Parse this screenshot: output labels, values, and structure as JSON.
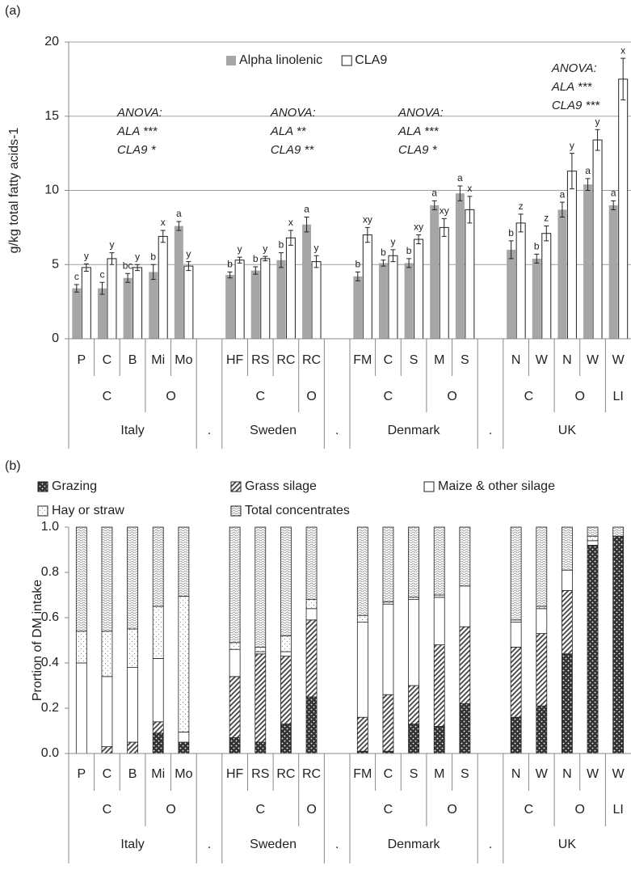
{
  "chart_data": [
    {
      "type": "bar",
      "panel": "(a)",
      "y_label": "g/kg total fatty acids-1",
      "ylim": [
        0,
        20
      ],
      "yticks": [
        0,
        5,
        10,
        15,
        20
      ],
      "grid": true,
      "legend": "top",
      "countries": [
        {
          "name": "Italy",
          "groups": [
            {
              "name": "C",
              "categories": [
                "P",
                "C",
                "B"
              ]
            },
            {
              "name": "O",
              "categories": [
                "Mi",
                "Mo"
              ]
            }
          ],
          "anova": [
            "ANOVA:",
            "ALA ***",
            "CLA9 *"
          ]
        },
        {
          "name": "."
        },
        {
          "name": "Sweden",
          "groups": [
            {
              "name": "C",
              "categories": [
                "HF",
                "RS",
                "RC"
              ]
            },
            {
              "name": "O",
              "categories": [
                "RC"
              ]
            }
          ],
          "anova": [
            "ANOVA:",
            "ALA **",
            "CLA9 **"
          ]
        },
        {
          "name": "."
        },
        {
          "name": "Denmark",
          "groups": [
            {
              "name": "C",
              "categories": [
                "FM",
                "C",
                "S"
              ]
            },
            {
              "name": "O",
              "categories": [
                "M",
                "S"
              ]
            }
          ],
          "anova": [
            "ANOVA:",
            "ALA ***",
            "CLA9 *"
          ]
        },
        {
          "name": "."
        },
        {
          "name": "UK",
          "groups": [
            {
              "name": "C",
              "categories": [
                "N",
                "W"
              ]
            },
            {
              "name": "O",
              "categories": [
                "N",
                "W"
              ]
            },
            {
              "name": "LI",
              "categories": [
                "W"
              ]
            }
          ],
          "anova": [
            "ANOVA:",
            "ALA ***",
            "CLA9 ***"
          ]
        }
      ],
      "series": [
        {
          "name": "Alpha linolenic",
          "color": "#a6a6a6",
          "values": [
            3.4,
            3.4,
            4.1,
            4.5,
            7.6,
            null,
            4.3,
            4.6,
            5.3,
            7.7,
            null,
            4.2,
            5.1,
            5.1,
            9.0,
            9.8,
            null,
            6.0,
            5.4,
            8.7,
            10.4,
            9.0
          ],
          "errors": [
            0.25,
            0.4,
            0.3,
            0.5,
            0.3,
            null,
            0.2,
            0.25,
            0.5,
            0.5,
            null,
            0.3,
            0.2,
            0.3,
            0.3,
            0.5,
            null,
            0.6,
            0.3,
            0.5,
            0.4,
            0.3
          ],
          "letters": [
            "c",
            "c",
            "bc",
            "b",
            "a",
            null,
            "b",
            "b",
            "b",
            "a",
            null,
            "b",
            "b",
            "b",
            "a",
            "a",
            null,
            "b",
            "b",
            "a",
            "a",
            "a"
          ]
        },
        {
          "name": "CLA9",
          "color": "#ffffff",
          "values": [
            4.8,
            5.4,
            4.8,
            6.9,
            4.9,
            null,
            5.3,
            5.4,
            6.8,
            5.2,
            null,
            7.0,
            5.6,
            6.7,
            7.5,
            8.7,
            null,
            7.8,
            7.1,
            11.3,
            13.4,
            17.5
          ],
          "errors": [
            0.25,
            0.4,
            0.2,
            0.4,
            0.3,
            null,
            0.2,
            0.15,
            0.5,
            0.4,
            null,
            0.5,
            0.4,
            0.3,
            0.6,
            0.9,
            null,
            0.6,
            0.5,
            1.2,
            0.7,
            1.4
          ],
          "letters": [
            "y",
            "y",
            "y",
            "x",
            "y",
            null,
            "y",
            "y",
            "x",
            "y",
            null,
            "xy",
            "y",
            "xy",
            "xy",
            "x",
            null,
            "z",
            "z",
            "y",
            "y",
            "x"
          ]
        }
      ]
    },
    {
      "type": "stacked_bar",
      "panel": "(b)",
      "y_label": "Prortion of DM intake",
      "ylim": [
        0,
        1
      ],
      "yticks": [
        {
          "value": 0,
          "label": "0.0"
        },
        {
          "value": 0.2,
          "label": "0.2"
        },
        {
          "value": 0.4,
          "label": "0.4"
        },
        {
          "value": 0.6,
          "label": "0.6"
        },
        {
          "value": 0.8,
          "label": "0.8"
        },
        {
          "value": 1,
          "label": "1.0"
        }
      ],
      "grid": false,
      "legend": "top",
      "countries": [
        {
          "name": "Italy",
          "groups": [
            {
              "name": "C",
              "categories": [
                "P",
                "C",
                "B"
              ]
            },
            {
              "name": "O",
              "categories": [
                "Mi",
                "Mo"
              ]
            }
          ]
        },
        {
          "name": "."
        },
        {
          "name": "Sweden",
          "groups": [
            {
              "name": "C",
              "categories": [
                "HF",
                "RS",
                "RC"
              ]
            },
            {
              "name": "O",
              "categories": [
                "RC"
              ]
            }
          ]
        },
        {
          "name": "."
        },
        {
          "name": "Denmark",
          "groups": [
            {
              "name": "C",
              "categories": [
                "FM",
                "C",
                "S"
              ]
            },
            {
              "name": "O",
              "categories": [
                "M",
                "S"
              ]
            }
          ]
        },
        {
          "name": "."
        },
        {
          "name": "UK",
          "groups": [
            {
              "name": "C",
              "categories": [
                "N",
                "W"
              ]
            },
            {
              "name": "O",
              "categories": [
                "N",
                "W"
              ]
            },
            {
              "name": "LI",
              "categories": [
                "W"
              ]
            }
          ]
        }
      ],
      "series": [
        {
          "name": "Grazing",
          "color": "#333333",
          "pattern": "dots",
          "values": [
            0,
            0,
            0,
            0.09,
            0.05,
            null,
            0.07,
            0.05,
            0.13,
            0.25,
            null,
            0.01,
            0.01,
            0.13,
            0.12,
            0.22,
            null,
            0.16,
            0.21,
            0.44,
            0.92,
            0.96
          ]
        },
        {
          "name": "Grass silage",
          "color": "#444444",
          "pattern": "hatch",
          "values": [
            0,
            0.03,
            0.05,
            0.05,
            0,
            null,
            0.27,
            0.39,
            0.3,
            0.34,
            null,
            0.15,
            0.25,
            0.17,
            0.36,
            0.34,
            null,
            0.31,
            0.32,
            0.28,
            0,
            0
          ]
        },
        {
          "name": "Maize & other silage",
          "color": "#ffffff",
          "pattern": "solid",
          "values": [
            0.4,
            0.31,
            0.33,
            0.28,
            0.045,
            null,
            0.12,
            0.01,
            0.02,
            0.05,
            null,
            0.42,
            0.4,
            0.38,
            0.21,
            0.18,
            null,
            0.11,
            0.11,
            0.09,
            0.02,
            0
          ]
        },
        {
          "name": "Hay or straw",
          "color": "#8c8c8c",
          "pattern": "stipple",
          "values": [
            0.14,
            0.2,
            0.17,
            0.23,
            0.6,
            null,
            0.03,
            0.02,
            0.07,
            0.04,
            null,
            0.03,
            0.01,
            0.01,
            0.01,
            0,
            null,
            0.01,
            0.01,
            0,
            0.02,
            0
          ]
        },
        {
          "name": "Total concentrates",
          "color": "#8c8c8c",
          "pattern": "waves",
          "values": [
            0.46,
            0.46,
            0.45,
            0.35,
            0.305,
            null,
            0.51,
            0.53,
            0.48,
            0.32,
            null,
            0.39,
            0.33,
            0.31,
            0.3,
            0.26,
            null,
            0.41,
            0.35,
            0.19,
            0.04,
            0.04
          ]
        }
      ]
    }
  ]
}
